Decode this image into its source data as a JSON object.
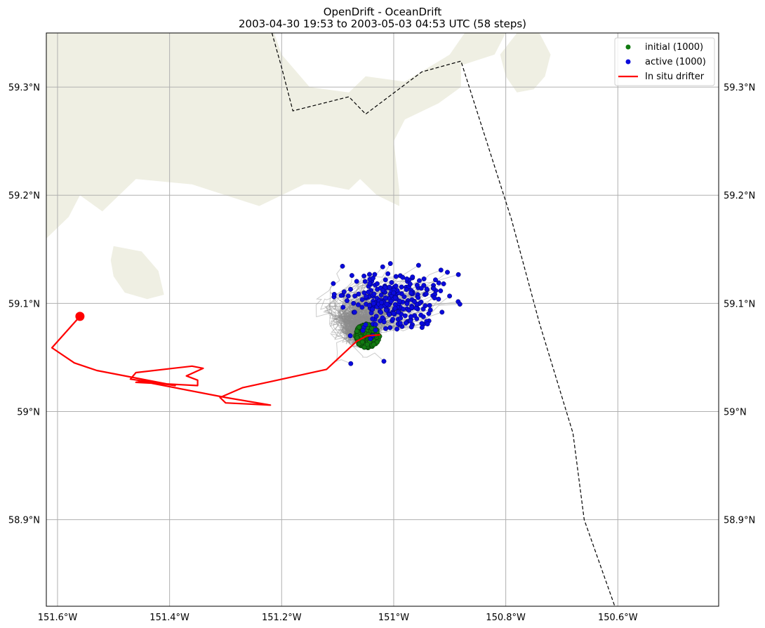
{
  "title_line1": "OpenDrift - OceanDrift",
  "title_line2": "2003-04-30 19:53 to 2003-05-03 04:53 UTC (58 steps)",
  "colors": {
    "land": "#efefe3",
    "grid": "#b0b0b0",
    "initial": "#117a11",
    "active": "#0a0adc",
    "trajectory": "#8c8c8c",
    "drifter": "#ff0000",
    "boundary": "#000000"
  },
  "chart_data": {
    "type": "scatter",
    "map_extent": {
      "lon": [
        -151.62,
        -150.42
      ],
      "lat": [
        58.82,
        59.35
      ]
    },
    "x_ticks": [
      {
        "value": -151.6,
        "label": "151.6°W"
      },
      {
        "value": -151.4,
        "label": "151.4°W"
      },
      {
        "value": -151.2,
        "label": "151.2°W"
      },
      {
        "value": -151.0,
        "label": "151°W"
      },
      {
        "value": -150.8,
        "label": "150.8°W"
      },
      {
        "value": -150.6,
        "label": "150.6°W"
      }
    ],
    "y_ticks": [
      {
        "value": 58.9,
        "label": "58.9°N"
      },
      {
        "value": 59.0,
        "label": "59°N"
      },
      {
        "value": 59.1,
        "label": "59.1°N"
      },
      {
        "value": 59.2,
        "label": "59.2°N"
      },
      {
        "value": 59.3,
        "label": "59.3°N"
      }
    ],
    "legend": {
      "position": "top-right",
      "entries": [
        {
          "label": "initial (1000)",
          "marker": "dot",
          "color": "#117a11"
        },
        {
          "label": "active (1000)",
          "marker": "dot",
          "color": "#0a0adc"
        },
        {
          "label": "In situ drifter",
          "marker": "line",
          "color": "#ff0000"
        }
      ]
    },
    "initial_cloud": {
      "center": [
        -151.047,
        59.07
      ],
      "spread": [
        0.022,
        0.011
      ],
      "count": 1000
    },
    "active_cloud": {
      "center": [
        -151.0,
        59.102
      ],
      "spread": [
        0.11,
        0.025
      ],
      "count": 1000
    },
    "drifter_track": [
      [
        -151.024,
        59.071
      ],
      [
        -151.048,
        59.07
      ],
      [
        -151.066,
        59.065
      ],
      [
        -151.12,
        59.039
      ],
      [
        -151.27,
        59.022
      ],
      [
        -151.31,
        59.013
      ],
      [
        -151.3,
        59.008
      ],
      [
        -151.22,
        59.006
      ],
      [
        -151.3,
        59.013
      ],
      [
        -151.45,
        59.028
      ],
      [
        -151.46,
        59.027
      ],
      [
        -151.35,
        59.024
      ],
      [
        -151.35,
        59.029
      ],
      [
        -151.37,
        59.033
      ],
      [
        -151.34,
        59.04
      ],
      [
        -151.36,
        59.042
      ],
      [
        -151.46,
        59.036
      ],
      [
        -151.47,
        59.03
      ],
      [
        -151.39,
        59.024
      ],
      [
        -151.53,
        59.038
      ],
      [
        -151.57,
        59.045
      ],
      [
        -151.61,
        59.059
      ],
      [
        -151.56,
        59.088
      ]
    ],
    "drifter_end": [
      -151.56,
      59.088
    ],
    "boundary_line": [
      [
        -151.22,
        59.355
      ],
      [
        -151.2,
        59.318
      ],
      [
        -151.18,
        59.278
      ],
      [
        -151.08,
        59.291
      ],
      [
        -151.05,
        59.275
      ],
      [
        -150.95,
        59.314
      ],
      [
        -150.88,
        59.324
      ],
      [
        -150.79,
        59.178
      ],
      [
        -150.74,
        59.082
      ],
      [
        -150.68,
        58.98
      ],
      [
        -150.66,
        58.9
      ],
      [
        -150.6,
        58.812
      ]
    ],
    "land_polygons": [
      [
        [
          -151.64,
          59.36
        ],
        [
          -151.22,
          59.36
        ],
        [
          -151.2,
          59.33
        ],
        [
          -151.15,
          59.3
        ],
        [
          -151.08,
          59.295
        ],
        [
          -151.05,
          59.31
        ],
        [
          -150.98,
          59.305
        ],
        [
          -150.9,
          59.33
        ],
        [
          -150.86,
          59.36
        ],
        [
          -150.84,
          59.36
        ],
        [
          -150.8,
          59.35
        ],
        [
          -150.82,
          59.33
        ],
        [
          -150.88,
          59.32
        ],
        [
          -150.88,
          59.3
        ],
        [
          -150.92,
          59.285
        ],
        [
          -150.98,
          59.27
        ],
        [
          -151.0,
          59.25
        ],
        [
          -150.99,
          59.205
        ],
        [
          -150.99,
          59.19
        ],
        [
          -151.03,
          59.2
        ],
        [
          -151.06,
          59.215
        ],
        [
          -151.08,
          59.205
        ],
        [
          -151.13,
          59.21
        ],
        [
          -151.16,
          59.21
        ],
        [
          -151.2,
          59.2
        ],
        [
          -151.24,
          59.19
        ],
        [
          -151.3,
          59.2
        ],
        [
          -151.36,
          59.21
        ],
        [
          -151.46,
          59.215
        ],
        [
          -151.5,
          59.195
        ],
        [
          -151.52,
          59.185
        ],
        [
          -151.56,
          59.2
        ],
        [
          -151.58,
          59.18
        ],
        [
          -151.6,
          59.17
        ],
        [
          -151.62,
          59.16
        ],
        [
          -151.64,
          59.16
        ]
      ],
      [
        [
          -151.5,
          59.153
        ],
        [
          -151.45,
          59.148
        ],
        [
          -151.42,
          59.13
        ],
        [
          -151.41,
          59.108
        ],
        [
          -151.44,
          59.104
        ],
        [
          -151.48,
          59.11
        ],
        [
          -151.5,
          59.125
        ],
        [
          -151.505,
          59.14
        ]
      ],
      [
        [
          -150.78,
          59.35
        ],
        [
          -150.74,
          59.35
        ],
        [
          -150.72,
          59.33
        ],
        [
          -150.73,
          59.31
        ],
        [
          -150.75,
          59.298
        ],
        [
          -150.78,
          59.295
        ],
        [
          -150.8,
          59.31
        ],
        [
          -150.81,
          59.33
        ]
      ]
    ]
  }
}
